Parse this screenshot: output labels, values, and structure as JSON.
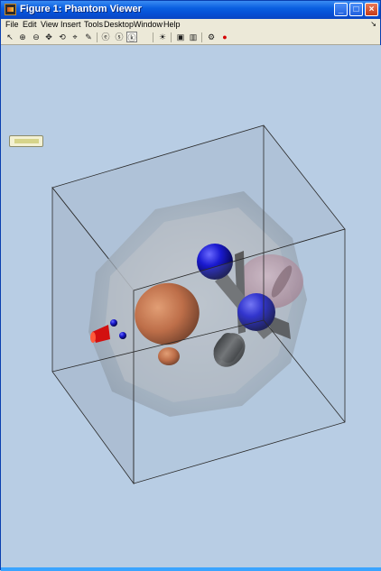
{
  "window": {
    "title": "Figure 1: Phantom Viewer",
    "buttons": {
      "minimize": "_",
      "maximize": "□",
      "close": "×"
    }
  },
  "menubar": {
    "items": [
      {
        "label": "File",
        "hot": "F"
      },
      {
        "label": "Edit",
        "hot": "E"
      },
      {
        "label": "View",
        "hot": "V"
      },
      {
        "label": "Insert",
        "hot": "I"
      },
      {
        "label": "Tools",
        "hot": "T"
      },
      {
        "label": "Desktop",
        "hot": "D"
      },
      {
        "label": "Window",
        "hot": "W"
      },
      {
        "label": "Help",
        "hot": "H"
      }
    ],
    "overflow_arrow": "↘"
  },
  "toolbar": {
    "tools": [
      {
        "name": "select-tool",
        "glyph": "↖"
      },
      {
        "name": "zoom-in-tool",
        "glyph": "⊕"
      },
      {
        "name": "zoom-out-tool",
        "glyph": "⊖"
      },
      {
        "name": "pan-tool",
        "glyph": "✥"
      },
      {
        "name": "rotate-tool",
        "glyph": "⟲"
      },
      {
        "name": "data-cursor-tool",
        "glyph": "⌖"
      },
      {
        "name": "brush-tool",
        "glyph": "✎"
      },
      {
        "name": "camera-orbit-tool",
        "glyph": "ⓔ"
      },
      {
        "name": "camera-roll-tool",
        "glyph": "ⓢ"
      },
      {
        "name": "camera-dolly-tool",
        "glyph": "ⓚ"
      },
      {
        "name": "light-tool",
        "glyph": "☀"
      },
      {
        "name": "projection-tool",
        "glyph": "▣"
      },
      {
        "name": "plot-tools-tool",
        "glyph": "▥"
      },
      {
        "name": "plot-browser-tool",
        "glyph": "⚙"
      },
      {
        "name": "stop-button",
        "glyph": "●"
      }
    ],
    "active": "camera-roll-tool"
  },
  "scene": {
    "colors": {
      "background": "#b8cde4",
      "box_face": "#9fb0c2",
      "ellipsoid": "#a9b6c4",
      "orange": "#c4602f",
      "blue": "#1414b0",
      "pink": "#c49aa8",
      "gray": "#4a4a4a",
      "red": "#d21010"
    }
  }
}
